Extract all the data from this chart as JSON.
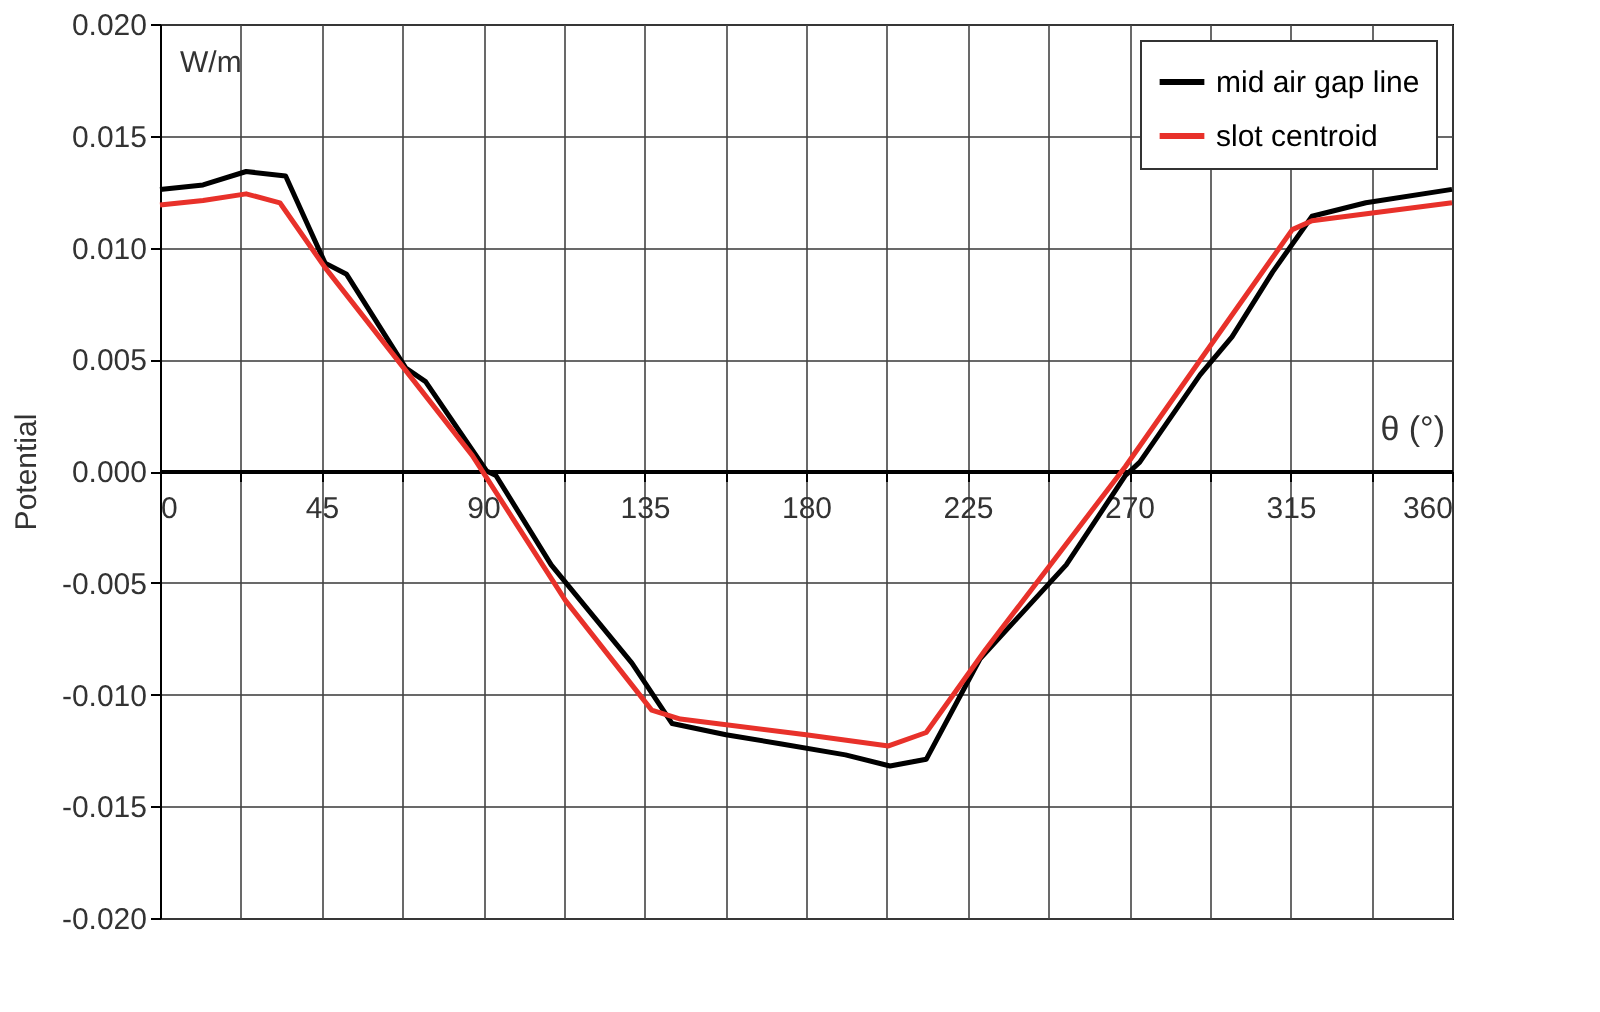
{
  "chart_data": {
    "type": "line",
    "xlabel": "θ (°)",
    "ylabel": "Potential",
    "annotations": [
      "W/m"
    ],
    "xlim": [
      0,
      360
    ],
    "ylim": [
      -0.02,
      0.02
    ],
    "xticks": [
      0,
      {
        "value": 22.5,
        "label": null
      },
      45,
      {
        "value": 67.5,
        "label": null
      },
      90,
      {
        "value": 112.5,
        "label": null
      },
      135,
      {
        "value": 157.5,
        "label": null
      },
      180,
      {
        "value": 202.5,
        "label": null
      },
      225,
      {
        "value": 247.5,
        "label": null
      },
      270,
      {
        "value": 292.5,
        "label": null
      },
      315,
      {
        "value": 337.5,
        "label": null
      },
      360
    ],
    "yticks": [
      {
        "value": 0.02,
        "label": "0.020"
      },
      {
        "value": 0.015,
        "label": "0.015"
      },
      {
        "value": 0.01,
        "label": "0.010"
      },
      {
        "value": 0.005,
        "label": "0.005"
      },
      {
        "value": 0,
        "label": "0.000"
      },
      {
        "value": -0.005,
        "label": "-0.005"
      },
      {
        "value": -0.01,
        "label": "-0.010"
      },
      {
        "value": -0.015,
        "label": "-0.015"
      },
      {
        "value": -0.02,
        "label": "-0.020"
      }
    ],
    "grid": true,
    "legend": "top right",
    "marker": "none",
    "line_style": "solid",
    "series": [
      {
        "name": "mid air gap line",
        "color": "#000000",
        "x": [
          0,
          12,
          24,
          35,
          46,
          52,
          68.5,
          74,
          91,
          93.6,
          109,
          131.5,
          142.7,
          157.7,
          172.8,
          191,
          203.4,
          213.5,
          228.5,
          252.5,
          269,
          273,
          289.8,
          298.7,
          310,
          321,
          336,
          360
        ],
        "values": [
          0.0126,
          0.0128,
          0.0134,
          0.0132,
          0.0093,
          0.0088,
          0.0046,
          0.004,
          0,
          -0.0002,
          -0.0042,
          -0.0086,
          -0.0113,
          -0.0118,
          -0.0122,
          -0.0127,
          -0.0132,
          -0.0129,
          -0.0084,
          -0.0042,
          -0.0002,
          0.0004,
          0.0043,
          0.006,
          0.0089,
          0.0114,
          0.012,
          0.0126
        ]
      },
      {
        "name": "slot centroid",
        "color": "#e8312a",
        "x": [
          0,
          12,
          24,
          33.4,
          46,
          87,
          113,
          137,
          145,
          180,
          203,
          213.5,
          230,
          269,
          290,
          315.5,
          321,
          360
        ],
        "values": [
          0.0119,
          0.0121,
          0.0124,
          0.012,
          0.0091,
          0.0007,
          -0.0058,
          -0.0107,
          -0.0111,
          -0.0118,
          -0.0123,
          -0.0117,
          -0.008,
          0.0002,
          0.005,
          0.0108,
          0.0112,
          0.012
        ]
      }
    ]
  }
}
